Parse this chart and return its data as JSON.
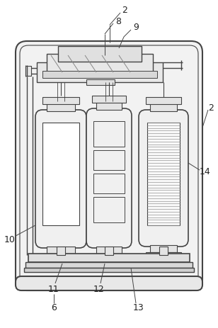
{
  "bg_color": "#ffffff",
  "line_color": "#444444",
  "fig_width": 3.08,
  "fig_height": 4.63,
  "dpi": 100
}
